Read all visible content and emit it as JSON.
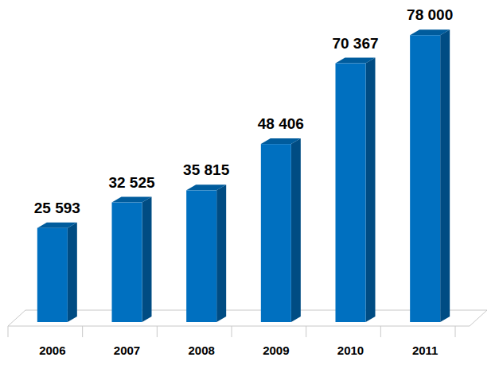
{
  "chart_data": {
    "type": "bar",
    "categories": [
      "2006",
      "2007",
      "2008",
      "2009",
      "2010",
      "2011"
    ],
    "values": [
      25593,
      32525,
      35815,
      48406,
      70367,
      78000
    ],
    "value_labels": [
      "25 593",
      "32 525",
      "35 815",
      "48 406",
      "70 367",
      "78 000"
    ],
    "color": "#0070c0",
    "ylim": [
      0,
      80000
    ],
    "data_labels": true,
    "tick_labels": "x",
    "grid": false
  }
}
